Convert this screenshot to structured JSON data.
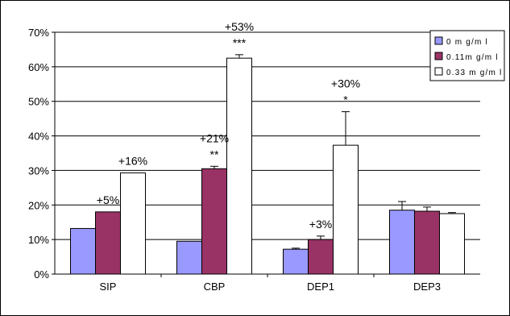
{
  "chart_data": {
    "type": "bar",
    "categories": [
      "SIP",
      "CBP",
      "DEP1",
      "DEP3"
    ],
    "series": [
      {
        "name": "0 m g/m l",
        "color": "#9999ff",
        "values": [
          13.2,
          9.5,
          7.2,
          18.5
        ],
        "errors": [
          0,
          0,
          0.3,
          2.5
        ]
      },
      {
        "name": "0.11m g/m l",
        "color": "#993366",
        "values": [
          18.0,
          30.5,
          10.0,
          18.2
        ],
        "errors": [
          0,
          0.7,
          1.0,
          1.2
        ]
      },
      {
        "name": "0.33 m g/m l",
        "color": "#ffffff",
        "values": [
          29.3,
          62.5,
          37.3,
          17.5
        ],
        "errors": [
          0,
          1.0,
          9.7,
          0.3
        ]
      }
    ],
    "annotations": [
      {
        "category": 0,
        "series": 1,
        "change": "+5%",
        "sig": ""
      },
      {
        "category": 0,
        "series": 2,
        "change": "+16%",
        "sig": ""
      },
      {
        "category": 1,
        "series": 1,
        "change": "+21%",
        "sig": "**"
      },
      {
        "category": 1,
        "series": 2,
        "change": "+53%",
        "sig": "***"
      },
      {
        "category": 2,
        "series": 1,
        "change": "+3%",
        "sig": ""
      },
      {
        "category": 2,
        "series": 2,
        "change": "+30%",
        "sig": "*"
      }
    ],
    "ylim": [
      0,
      70
    ],
    "yticks": [
      0,
      10,
      20,
      30,
      40,
      50,
      60,
      70
    ],
    "ytick_labels": [
      "0%",
      "10%",
      "20%",
      "30%",
      "40%",
      "50%",
      "60%",
      "70%"
    ],
    "grid": true,
    "legend_position": "top-right"
  }
}
